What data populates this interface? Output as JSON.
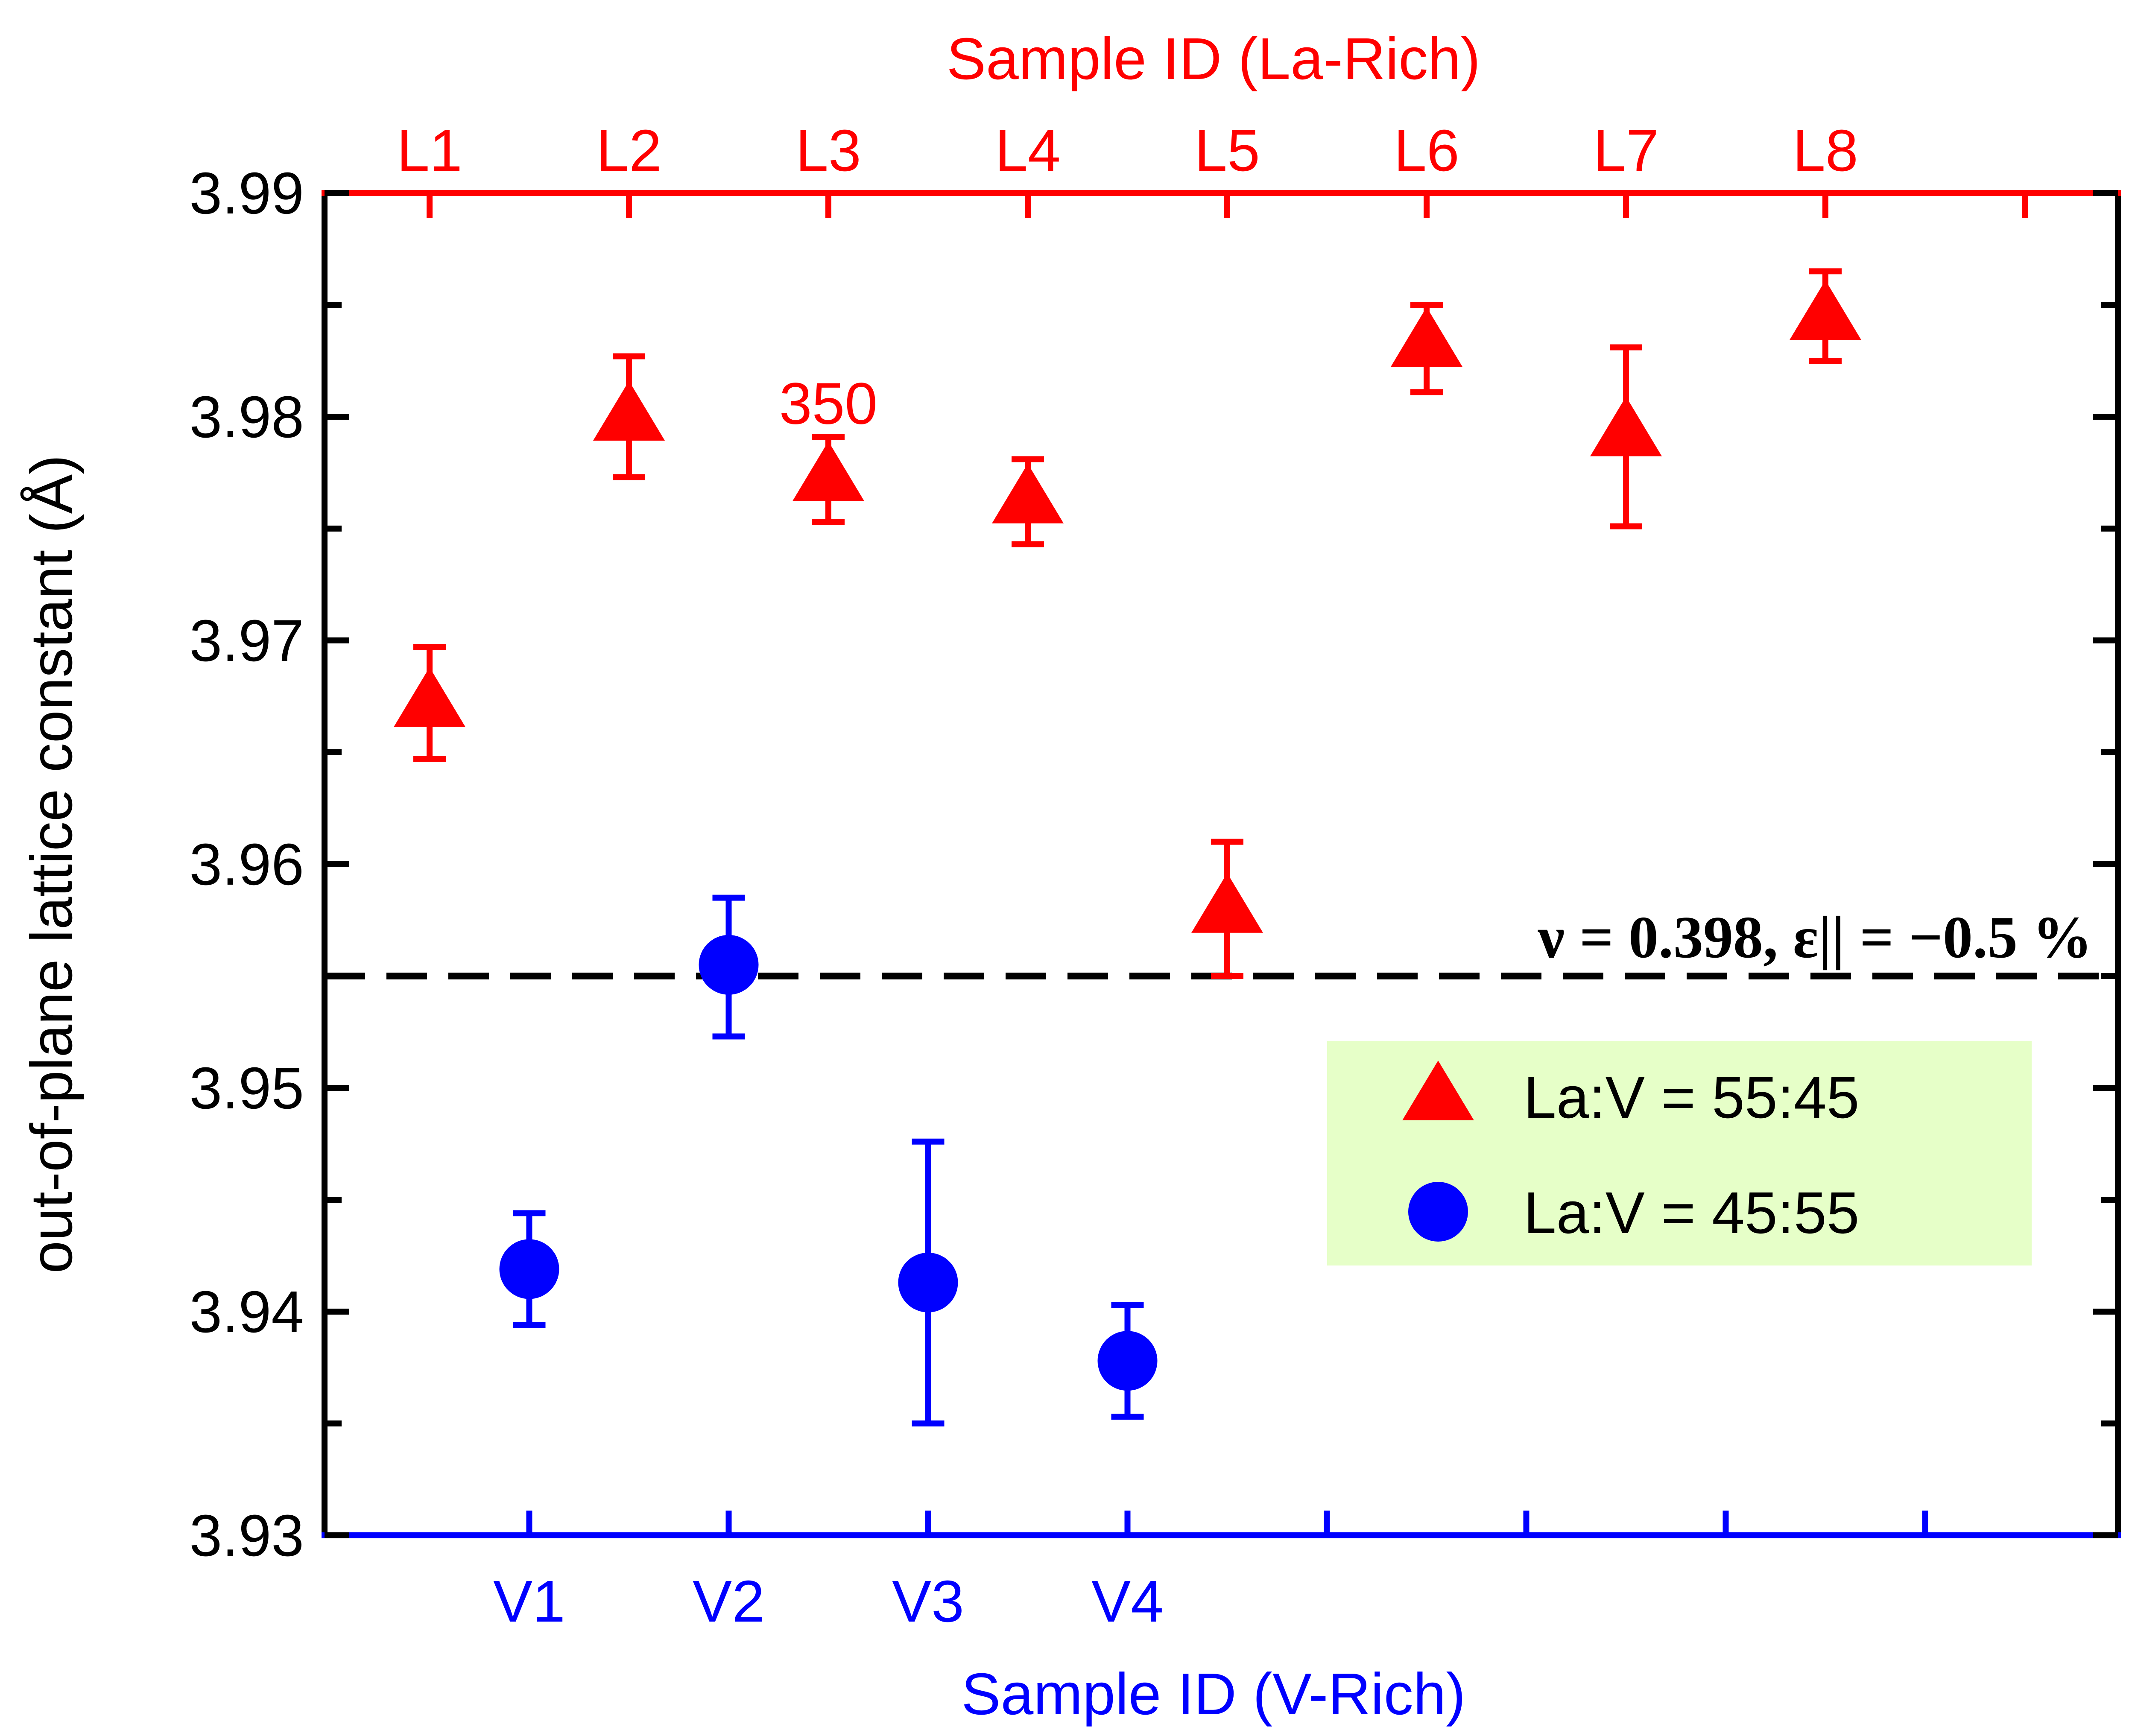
{
  "chart_data": {
    "type": "scatter",
    "ylabel": "out-of-plane lattice constant (Å)",
    "xlabel_bottom": "Sample ID (V-Rich)",
    "xlabel_top": "Sample ID (La-Rich)",
    "ylim": [
      3.93,
      3.99
    ],
    "yticks": [
      "3.93",
      "3.94",
      "3.95",
      "3.96",
      "3.97",
      "3.98",
      "3.99"
    ],
    "xlim": [
      -0.5,
      8.5
    ],
    "series": [
      {
        "name": "La:V = 55:45",
        "marker": "triangle",
        "color": "#ff0000",
        "axis": "top",
        "x": [
          0,
          1,
          2,
          3,
          4,
          5,
          6,
          7
        ],
        "labels": [
          "L1",
          "L2",
          "L3",
          "L4",
          "L5",
          "L6",
          "L7",
          "L8"
        ],
        "values": [
          3.9672,
          3.98,
          3.9773,
          3.9763,
          3.958,
          3.9833,
          3.9793,
          3.9845
        ],
        "err_low": [
          0.0025,
          0.0027,
          0.002,
          0.002,
          0.003,
          0.0022,
          0.0042,
          0.002
        ],
        "err_high": [
          0.0025,
          0.0027,
          0.0018,
          0.0018,
          0.003,
          0.0017,
          0.0038,
          0.002
        ]
      },
      {
        "name": "La:V = 45:55",
        "marker": "circle",
        "color": "#0000ff",
        "axis": "bottom",
        "x": [
          0.5,
          1.5,
          2.5,
          3.5
        ],
        "labels": [
          "V1",
          "V2",
          "V3",
          "V4"
        ],
        "values": [
          3.9419,
          3.9555,
          3.9413,
          3.9378
        ],
        "err_low": [
          0.0025,
          0.0032,
          0.0063,
          0.0025
        ],
        "err_high": [
          0.0025,
          0.003,
          0.0063,
          0.0025
        ]
      }
    ],
    "bottom_tick_count": 8,
    "top_tick_count": 9,
    "reference_line": {
      "y": 3.955,
      "label": "ν = 0.398, ε|| = −0.5 %"
    },
    "annotations": [
      {
        "text": "350",
        "x": 2.0,
        "y": 3.9806,
        "color": "#ff0000"
      }
    ],
    "legend": {
      "placement": "center-right",
      "background": "#e6ffc8"
    },
    "colors": {
      "axis": "#000000",
      "top_axis": "#ff0000",
      "bottom_axis": "#0000ff"
    }
  }
}
